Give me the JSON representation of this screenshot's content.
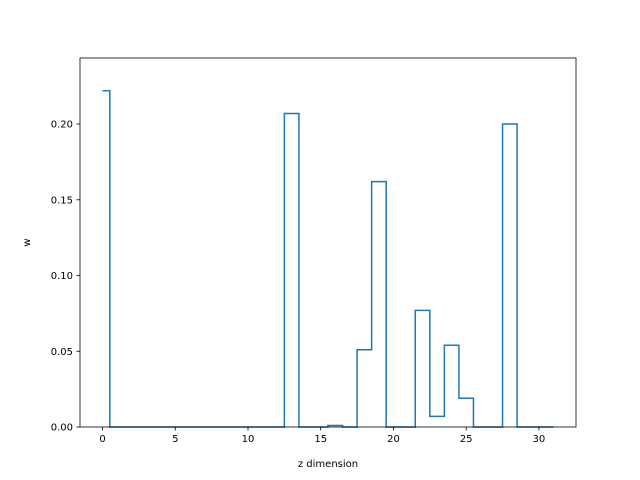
{
  "chart_data": {
    "type": "line",
    "drawstyle": "steps-mid",
    "title": "",
    "xlabel": "z dimension",
    "ylabel": "w",
    "xlim": [
      -1.55,
      32.55
    ],
    "ylim": [
      0.0,
      0.2436
    ],
    "xticks": [
      0,
      5,
      10,
      15,
      20,
      25,
      30
    ],
    "xtick_labels": [
      "0",
      "5",
      "10",
      "15",
      "20",
      "25",
      "30"
    ],
    "yticks": [
      0.0,
      0.05,
      0.1,
      0.15,
      0.2
    ],
    "ytick_labels": [
      "0.00",
      "0.05",
      "0.10",
      "0.15",
      "0.20"
    ],
    "grid": false,
    "line_color": "#1f77b4",
    "series": [
      {
        "x": [
          0,
          1,
          2,
          3,
          4,
          5,
          6,
          7,
          8,
          9,
          10,
          11,
          12,
          13,
          14,
          15,
          16,
          17,
          18,
          19,
          20,
          21,
          22,
          23,
          24,
          25,
          26,
          27,
          28,
          29,
          30,
          31
        ],
        "y": [
          0.222,
          0,
          0,
          0,
          0,
          0,
          0,
          0,
          0,
          0,
          0,
          0,
          0,
          0.207,
          0,
          0,
          0.001,
          0,
          0.051,
          0.162,
          0,
          0,
          0.077,
          0.007,
          0.054,
          0.019,
          0,
          0,
          0.2,
          0,
          0,
          0
        ]
      }
    ]
  }
}
